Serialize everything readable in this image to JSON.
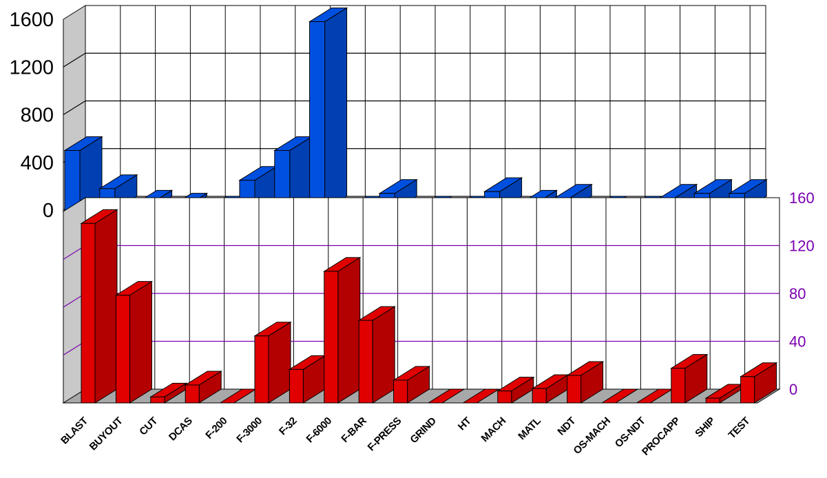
{
  "chart_data": [
    {
      "type": "bar",
      "categories": [
        "BLAST",
        "BUYOUT",
        "CUT",
        "DCAS",
        "F-200",
        "F-3000",
        "F-32",
        "F-6000",
        "F-BAR",
        "F-PRESS",
        "GRIND",
        "HT",
        "MACH",
        "MATL",
        "NDT",
        "OS-MACH",
        "OS-NDT",
        "PROCAPP",
        "SHIP",
        "TEST"
      ],
      "values": [
        500,
        180,
        50,
        25,
        0,
        250,
        500,
        1580,
        0,
        140,
        0,
        0,
        155,
        50,
        100,
        0,
        0,
        100,
        140,
        140
      ],
      "ylim": [
        0,
        1600
      ],
      "yticks": [
        "0",
        "400",
        "800",
        "1200",
        "1600"
      ],
      "grid": true,
      "color": "#0050e0"
    },
    {
      "type": "bar",
      "categories": [
        "BLAST",
        "BUYOUT",
        "CUT",
        "DCAS",
        "F-200",
        "F-3000",
        "F-32",
        "F-6000",
        "F-BAR",
        "F-PRESS",
        "GRIND",
        "HT",
        "MACH",
        "MATL",
        "NDT",
        "OS-MACH",
        "OS-NDT",
        "PROCAPP",
        "SHIP",
        "TEST"
      ],
      "values": [
        150,
        90,
        5,
        15,
        0,
        56,
        28,
        110,
        69,
        19,
        0,
        0,
        10,
        12,
        23,
        0,
        0,
        29,
        4,
        22
      ],
      "ylim": [
        0,
        160
      ],
      "yticks": [
        "0",
        "40",
        "80",
        "120",
        "160"
      ],
      "grid": true,
      "color": "#e00000",
      "axis_color": "#7a00b0"
    }
  ]
}
